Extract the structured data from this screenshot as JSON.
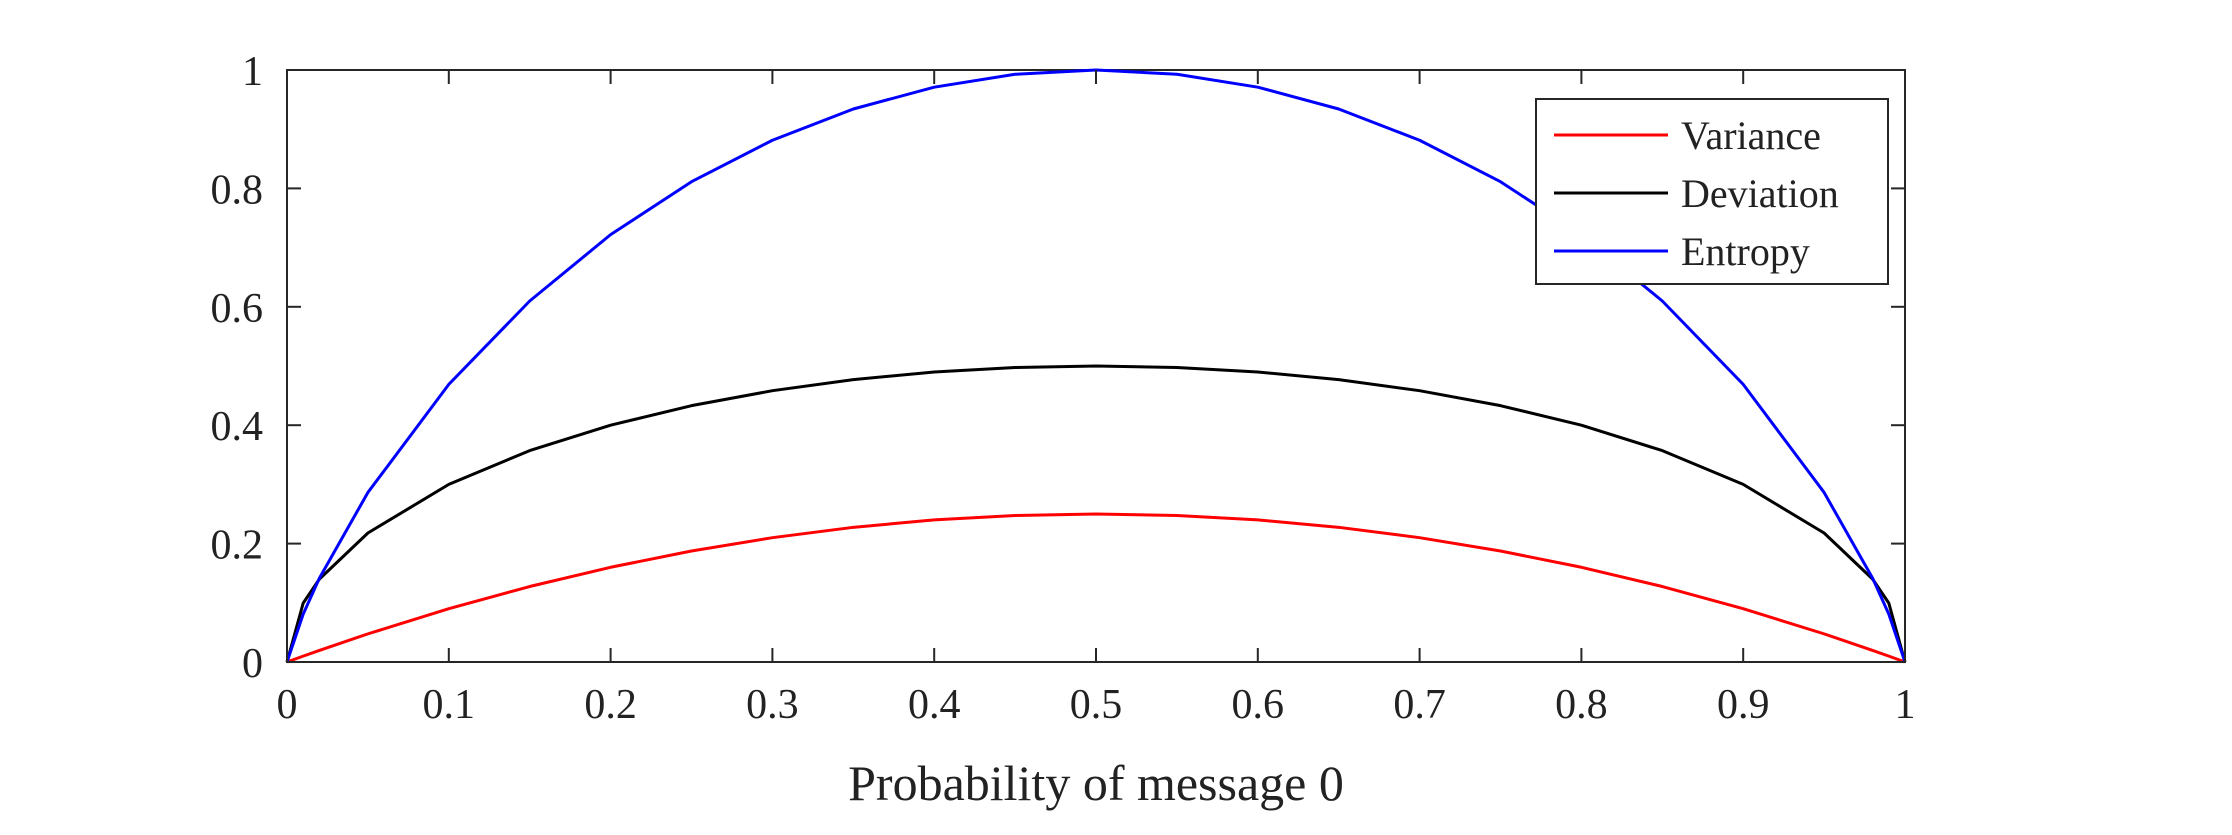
{
  "chart_data": {
    "type": "line",
    "title": "",
    "xlabel": "Probability of message 0",
    "ylabel": "",
    "xlim": [
      0,
      1
    ],
    "ylim": [
      0,
      1
    ],
    "x_ticks": [
      "0",
      "0.1",
      "0.2",
      "0.3",
      "0.4",
      "0.5",
      "0.6",
      "0.7",
      "0.8",
      "0.9",
      "1"
    ],
    "y_ticks": [
      "0",
      "0.2",
      "0.4",
      "0.6",
      "0.8",
      "1"
    ],
    "grid": false,
    "legend_position": "top-right",
    "x": [
      0,
      0.01,
      0.02,
      0.05,
      0.1,
      0.15,
      0.2,
      0.25,
      0.3,
      0.35,
      0.4,
      0.45,
      0.5,
      0.55,
      0.6,
      0.65,
      0.7,
      0.75,
      0.8,
      0.85,
      0.9,
      0.95,
      0.98,
      0.99,
      1
    ],
    "series": [
      {
        "name": "Variance",
        "color": "#ff0000",
        "values": [
          0,
          0.0099,
          0.0196,
          0.0475,
          0.09,
          0.1275,
          0.16,
          0.1875,
          0.21,
          0.2275,
          0.24,
          0.2475,
          0.25,
          0.2475,
          0.24,
          0.2275,
          0.21,
          0.1875,
          0.16,
          0.1275,
          0.09,
          0.0475,
          0.0196,
          0.0099,
          0
        ]
      },
      {
        "name": "Deviation",
        "color": "#000000",
        "values": [
          0,
          0.0995,
          0.14,
          0.2179,
          0.3,
          0.3571,
          0.4,
          0.433,
          0.4583,
          0.477,
          0.4899,
          0.4975,
          0.5,
          0.4975,
          0.4899,
          0.477,
          0.4583,
          0.433,
          0.4,
          0.3571,
          0.3,
          0.2179,
          0.14,
          0.0995,
          0
        ]
      },
      {
        "name": "Entropy",
        "color": "#0000ff",
        "values": [
          0,
          0.0808,
          0.1414,
          0.2864,
          0.469,
          0.6098,
          0.7219,
          0.8113,
          0.8813,
          0.9341,
          0.971,
          0.9928,
          1,
          0.9928,
          0.971,
          0.9341,
          0.8813,
          0.8113,
          0.7219,
          0.6098,
          0.469,
          0.2864,
          0.1414,
          0.0808,
          0
        ]
      }
    ]
  }
}
